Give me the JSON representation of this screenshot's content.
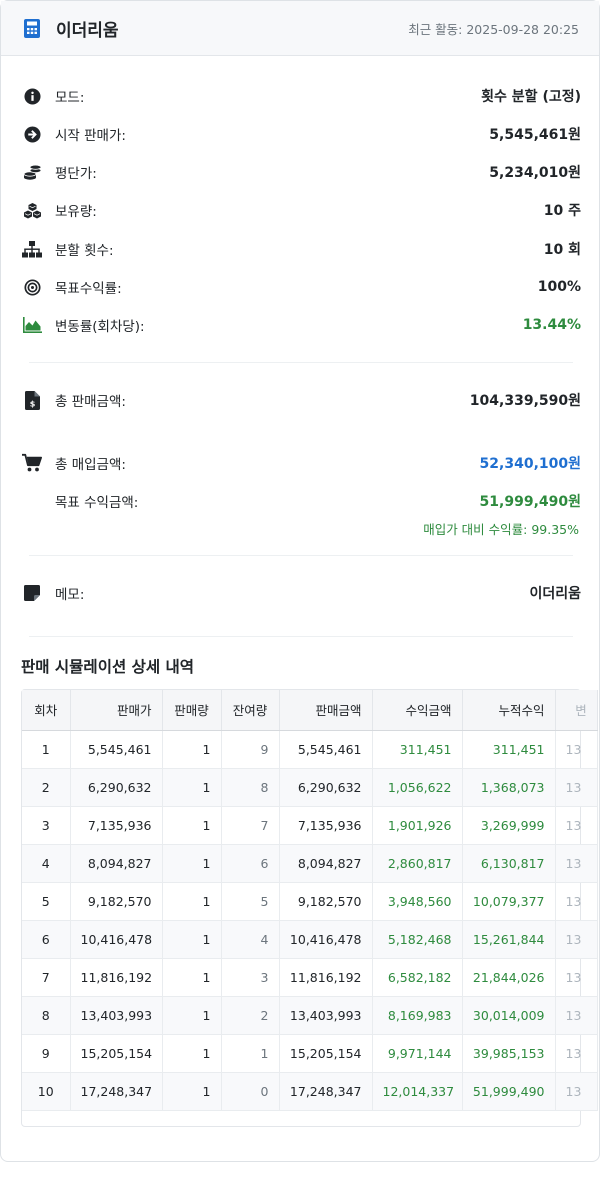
{
  "header": {
    "title": "이더리움",
    "last_activity": "최근 활동: 2025-09-28 20:25"
  },
  "summary": {
    "mode_label": "모드:",
    "mode_value": "횟수 분할 (고정)",
    "start_price_label": "시작 판매가:",
    "start_price_value": "5,545,461원",
    "avg_price_label": "평단가:",
    "avg_price_value": "5,234,010원",
    "holding_label": "보유량:",
    "holding_value": "10 주",
    "split_count_label": "분할 횟수:",
    "split_count_value": "10 회",
    "target_rate_label": "목표수익률:",
    "target_rate_value": "100%",
    "change_rate_label": "변동률(회차당):",
    "change_rate_value": "13.44%",
    "total_sales_label": "총 판매금액:",
    "total_sales_value": "104,339,590원",
    "total_purchase_label": "총 매입금액:",
    "total_purchase_value": "52,340,100원",
    "target_profit_label": "목표 수익금액:",
    "target_profit_value": "51,999,490원",
    "profit_rate_note": "매입가 대비 수익률: 99.35%",
    "memo_label": "메모:",
    "memo_value": "이더리움"
  },
  "detail": {
    "title": "판매 시뮬레이션 상세 내역",
    "columns": [
      "회차",
      "판매가",
      "판매량",
      "잔여량",
      "판매금액",
      "수익금액",
      "누적수익",
      "변"
    ],
    "rows": [
      {
        "round": "1",
        "price": "5,545,461",
        "qty": "1",
        "remain": "9",
        "amount": "5,545,461",
        "profit": "311,451",
        "cum": "311,451",
        "rate": "13"
      },
      {
        "round": "2",
        "price": "6,290,632",
        "qty": "1",
        "remain": "8",
        "amount": "6,290,632",
        "profit": "1,056,622",
        "cum": "1,368,073",
        "rate": "13"
      },
      {
        "round": "3",
        "price": "7,135,936",
        "qty": "1",
        "remain": "7",
        "amount": "7,135,936",
        "profit": "1,901,926",
        "cum": "3,269,999",
        "rate": "13"
      },
      {
        "round": "4",
        "price": "8,094,827",
        "qty": "1",
        "remain": "6",
        "amount": "8,094,827",
        "profit": "2,860,817",
        "cum": "6,130,817",
        "rate": "13"
      },
      {
        "round": "5",
        "price": "9,182,570",
        "qty": "1",
        "remain": "5",
        "amount": "9,182,570",
        "profit": "3,948,560",
        "cum": "10,079,377",
        "rate": "13"
      },
      {
        "round": "6",
        "price": "10,416,478",
        "qty": "1",
        "remain": "4",
        "amount": "10,416,478",
        "profit": "5,182,468",
        "cum": "15,261,844",
        "rate": "13"
      },
      {
        "round": "7",
        "price": "11,816,192",
        "qty": "1",
        "remain": "3",
        "amount": "11,816,192",
        "profit": "6,582,182",
        "cum": "21,844,026",
        "rate": "13"
      },
      {
        "round": "8",
        "price": "13,403,993",
        "qty": "1",
        "remain": "2",
        "amount": "13,403,993",
        "profit": "8,169,983",
        "cum": "30,014,009",
        "rate": "13"
      },
      {
        "round": "9",
        "price": "15,205,154",
        "qty": "1",
        "remain": "1",
        "amount": "15,205,154",
        "profit": "9,971,144",
        "cum": "39,985,153",
        "rate": "13"
      },
      {
        "round": "10",
        "price": "17,248,347",
        "qty": "1",
        "remain": "0",
        "amount": "17,248,347",
        "profit": "12,014,337",
        "cum": "51,999,490",
        "rate": "13"
      }
    ]
  },
  "colors": {
    "accent_blue": "#1f6fd0",
    "profit_green": "#2e8b3e",
    "header_bg": "#f7f8fa"
  },
  "icons": {
    "header": "calculator-icon",
    "mode": "info-circle-icon",
    "start_price": "arrow-circle-right-icon",
    "avg_price": "coins-icon",
    "holding": "cubes-icon",
    "split_count": "sitemap-icon",
    "target_rate": "target-icon",
    "change_rate": "area-chart-icon",
    "total_sales": "invoice-dollar-icon",
    "total_purchase": "cart-icon",
    "memo": "sticky-note-icon"
  }
}
